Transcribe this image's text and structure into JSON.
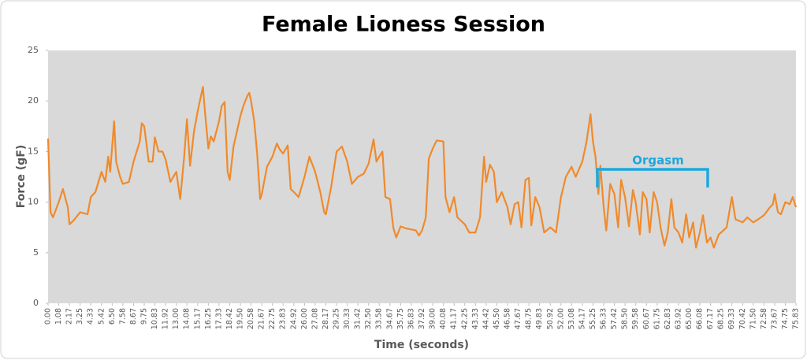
{
  "chart_data": {
    "type": "line",
    "title": "Female Lioness Session",
    "x_label": "Time (seconds)",
    "y_label": "Force (gF)",
    "xlim": [
      0,
      75.83
    ],
    "ylim": [
      0,
      25
    ],
    "yticks": [
      0,
      5,
      10,
      15,
      20,
      25
    ],
    "xticks": [
      {
        "value": 0,
        "label": "0.00"
      },
      {
        "value": 1.08,
        "label": "1.08"
      },
      {
        "value": 2.17,
        "label": "2.17"
      },
      {
        "value": 3.25,
        "label": "3.25"
      },
      {
        "value": 4.33,
        "label": "4.33"
      },
      {
        "value": 5.42,
        "label": "5.42"
      },
      {
        "value": 6.5,
        "label": "6.50"
      },
      {
        "value": 7.58,
        "label": "7.58"
      },
      {
        "value": 8.67,
        "label": "8.67"
      },
      {
        "value": 9.75,
        "label": "9.75"
      },
      {
        "value": 10.83,
        "label": "10.83"
      },
      {
        "value": 11.92,
        "label": "11.92"
      },
      {
        "value": 13,
        "label": "13.00"
      },
      {
        "value": 14.08,
        "label": "14.08"
      },
      {
        "value": 15.17,
        "label": "15.17"
      },
      {
        "value": 16.25,
        "label": "16.25"
      },
      {
        "value": 17.33,
        "label": "17.33"
      },
      {
        "value": 18.42,
        "label": "18.42"
      },
      {
        "value": 19.5,
        "label": "19.50"
      },
      {
        "value": 20.58,
        "label": "20.58"
      },
      {
        "value": 21.67,
        "label": "21.67"
      },
      {
        "value": 22.75,
        "label": "22.75"
      },
      {
        "value": 23.83,
        "label": "23.83"
      },
      {
        "value": 24.92,
        "label": "24.92"
      },
      {
        "value": 26,
        "label": "26.00"
      },
      {
        "value": 27.08,
        "label": "27.08"
      },
      {
        "value": 28.17,
        "label": "28.17"
      },
      {
        "value": 29.25,
        "label": "29.25"
      },
      {
        "value": 30.33,
        "label": "30.33"
      },
      {
        "value": 31.42,
        "label": "31.42"
      },
      {
        "value": 32.5,
        "label": "32.50"
      },
      {
        "value": 33.58,
        "label": "33.58"
      },
      {
        "value": 34.67,
        "label": "34.67"
      },
      {
        "value": 35.75,
        "label": "35.75"
      },
      {
        "value": 36.83,
        "label": "36.83"
      },
      {
        "value": 37.92,
        "label": "37.92"
      },
      {
        "value": 39,
        "label": "39.00"
      },
      {
        "value": 40.08,
        "label": "40.08"
      },
      {
        "value": 41.17,
        "label": "41.17"
      },
      {
        "value": 42.25,
        "label": "42.25"
      },
      {
        "value": 43.33,
        "label": "43.33"
      },
      {
        "value": 44.42,
        "label": "44.42"
      },
      {
        "value": 45.5,
        "label": "45.50"
      },
      {
        "value": 46.58,
        "label": "46.58"
      },
      {
        "value": 47.67,
        "label": "47.67"
      },
      {
        "value": 48.75,
        "label": "48.75"
      },
      {
        "value": 49.83,
        "label": "49.83"
      },
      {
        "value": 50.92,
        "label": "50.92"
      },
      {
        "value": 52,
        "label": "52.00"
      },
      {
        "value": 53.08,
        "label": "53.08"
      },
      {
        "value": 54.17,
        "label": "54.17"
      },
      {
        "value": 55.25,
        "label": "55.25"
      },
      {
        "value": 56.33,
        "label": "56.33"
      },
      {
        "value": 57.42,
        "label": "57.42"
      },
      {
        "value": 58.5,
        "label": "58.50"
      },
      {
        "value": 59.58,
        "label": "59.58"
      },
      {
        "value": 60.67,
        "label": "60.67"
      },
      {
        "value": 61.75,
        "label": "61.75"
      },
      {
        "value": 62.83,
        "label": "62.83"
      },
      {
        "value": 63.92,
        "label": "63.92"
      },
      {
        "value": 65,
        "label": "65.00"
      },
      {
        "value": 66.08,
        "label": "66.08"
      },
      {
        "value": 67.17,
        "label": "67.17"
      },
      {
        "value": 68.25,
        "label": "68.25"
      },
      {
        "value": 69.33,
        "label": "69.33"
      },
      {
        "value": 70.42,
        "label": "70.42"
      },
      {
        "value": 71.5,
        "label": "71.50"
      },
      {
        "value": 72.58,
        "label": "72.58"
      },
      {
        "value": 73.67,
        "label": "73.67"
      },
      {
        "value": 74.75,
        "label": "74.75"
      },
      {
        "value": 75.83,
        "label": "75.83"
      }
    ],
    "annotation": "Orgasm",
    "annotation_color": "#1ba8e0",
    "plot_background": "#d9d9d9",
    "series": [
      {
        "color": "#f08a2c",
        "x": [
          0,
          0.25,
          0.5,
          1.08,
          1.5,
          2.0,
          2.17,
          2.6,
          3.25,
          4.0,
          4.33,
          4.8,
          5.42,
          5.8,
          6.1,
          6.3,
          6.5,
          6.7,
          6.9,
          7.3,
          7.58,
          8.2,
          8.67,
          9.3,
          9.5,
          9.75,
          10.2,
          10.6,
          10.83,
          11.2,
          11.6,
          11.92,
          12.4,
          13.0,
          13.4,
          13.8,
          14.08,
          14.4,
          14.8,
          15.17,
          15.5,
          15.7,
          15.9,
          16.25,
          16.5,
          16.8,
          17.33,
          17.6,
          17.9,
          18.2,
          18.42,
          18.8,
          19.5,
          19.8,
          20.2,
          20.4,
          20.58,
          20.9,
          21.2,
          21.5,
          21.67,
          22.2,
          22.75,
          23.2,
          23.5,
          23.83,
          24.3,
          24.6,
          24.92,
          25.4,
          26.0,
          26.5,
          27.08,
          27.6,
          28.0,
          28.17,
          28.7,
          29.25,
          29.8,
          30.33,
          30.8,
          31.42,
          32.0,
          32.5,
          33.0,
          33.3,
          33.58,
          33.9,
          34.2,
          34.67,
          35.0,
          35.3,
          35.75,
          36.3,
          36.83,
          37.3,
          37.6,
          37.92,
          38.3,
          38.6,
          39.0,
          39.4,
          40.08,
          40.3,
          40.7,
          41.17,
          41.5,
          42.25,
          42.7,
          43.33,
          43.8,
          44.2,
          44.42,
          44.8,
          45.2,
          45.5,
          46.0,
          46.58,
          46.9,
          47.3,
          47.67,
          48.0,
          48.4,
          48.75,
          49.0,
          49.4,
          49.83,
          50.3,
          50.92,
          51.5,
          52.0,
          52.5,
          53.08,
          53.5,
          54.17,
          54.6,
          55.0,
          55.25,
          55.5,
          55.8,
          56.0,
          56.33,
          56.6,
          57.0,
          57.42,
          57.8,
          58.1,
          58.5,
          58.9,
          59.3,
          59.58,
          60.0,
          60.3,
          60.67,
          61.0,
          61.4,
          61.75,
          62.1,
          62.5,
          62.83,
          63.2,
          63.5,
          63.92,
          64.3,
          64.7,
          65.0,
          65.4,
          65.7,
          66.08,
          66.4,
          66.8,
          67.17,
          67.5,
          68.0,
          68.25,
          68.8,
          69.33,
          69.7,
          70.42,
          70.9,
          71.5,
          72.0,
          72.58,
          73.2,
          73.5,
          73.67,
          74.0,
          74.3,
          74.75,
          75.2,
          75.5,
          75.83
        ],
        "values": [
          16.3,
          9.0,
          8.5,
          10.0,
          11.3,
          9.5,
          7.8,
          8.2,
          9.0,
          8.8,
          10.5,
          11.0,
          13.0,
          12.0,
          14.5,
          13.0,
          15.5,
          18.0,
          14.0,
          12.5,
          11.8,
          12.0,
          14.0,
          16.0,
          17.8,
          17.5,
          14.0,
          14.0,
          16.4,
          15.0,
          15.0,
          14.2,
          12.0,
          13.0,
          10.3,
          14.5,
          18.2,
          13.6,
          17.0,
          19.0,
          20.5,
          21.4,
          19.0,
          15.3,
          16.5,
          16.0,
          18.0,
          19.5,
          19.9,
          13.0,
          12.2,
          15.5,
          18.5,
          19.5,
          20.5,
          20.8,
          20.0,
          18.0,
          14.8,
          10.3,
          10.8,
          13.5,
          14.5,
          15.8,
          15.2,
          14.8,
          15.6,
          11.3,
          11.0,
          10.5,
          12.5,
          14.5,
          13.0,
          11.0,
          9.0,
          8.8,
          11.5,
          15.0,
          15.5,
          14.0,
          11.8,
          12.5,
          12.8,
          13.8,
          16.2,
          14.0,
          14.5,
          15.0,
          10.5,
          10.3,
          7.5,
          6.5,
          7.6,
          7.4,
          7.3,
          7.2,
          6.7,
          7.2,
          8.5,
          14.3,
          15.3,
          16.1,
          16.0,
          10.5,
          9.0,
          10.5,
          8.5,
          7.8,
          7.0,
          7.0,
          8.5,
          14.5,
          12.0,
          13.7,
          13.0,
          10.0,
          11.0,
          9.5,
          7.8,
          9.8,
          10.0,
          7.5,
          12.2,
          12.4,
          7.7,
          10.5,
          9.5,
          7.0,
          7.5,
          7.0,
          10.5,
          12.5,
          13.5,
          12.5,
          14.0,
          16.0,
          18.7,
          16.0,
          14.5,
          10.8,
          13.6,
          9.5,
          7.2,
          11.8,
          10.8,
          7.5,
          12.2,
          10.5,
          7.6,
          11.2,
          10.0,
          6.8,
          11.0,
          10.3,
          7.0,
          11.0,
          10.0,
          7.5,
          5.7,
          7.0,
          10.3,
          7.5,
          7.0,
          6.0,
          8.8,
          6.5,
          8.0,
          5.5,
          7.0,
          8.7,
          6.0,
          6.5,
          5.5,
          6.8,
          7.0,
          7.5,
          10.5,
          8.3,
          8.0,
          8.5,
          8.0,
          8.3,
          8.7,
          9.5,
          9.8,
          10.8,
          9.0,
          8.8,
          10.0,
          9.8,
          10.5,
          9.5
        ]
      }
    ]
  }
}
